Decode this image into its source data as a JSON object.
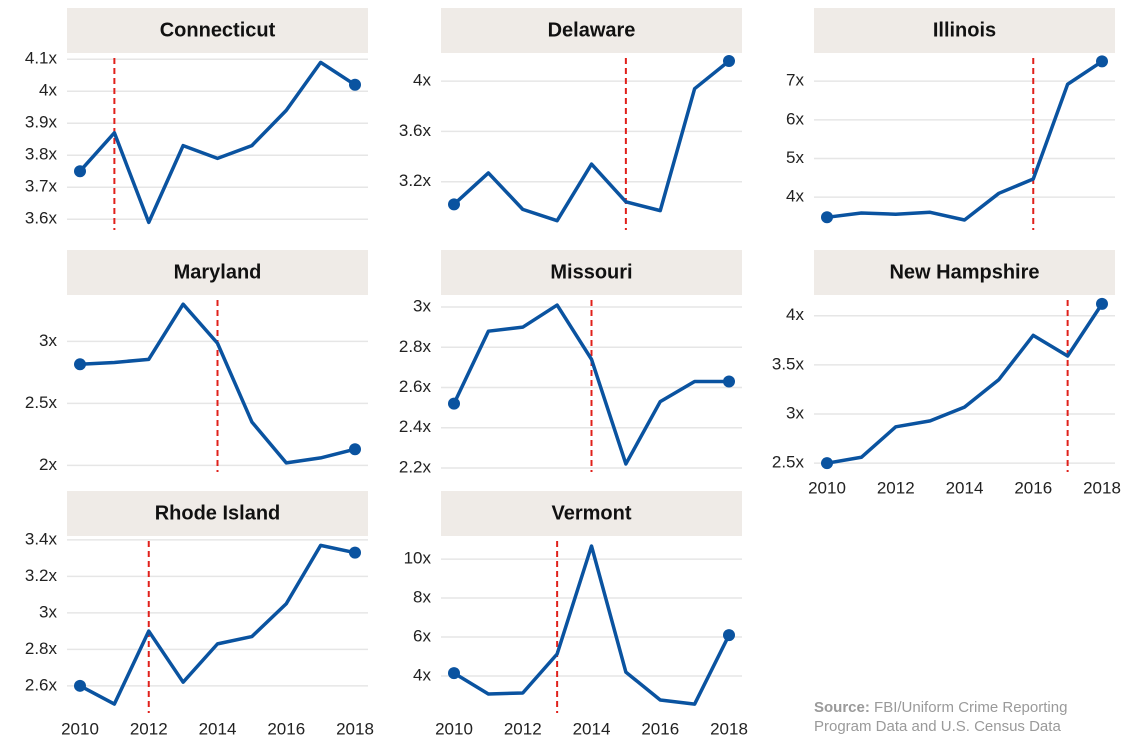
{
  "chart_data": [
    {
      "type": "line",
      "title": "Connecticut",
      "x": [
        2010,
        2011,
        2012,
        2013,
        2014,
        2015,
        2016,
        2017,
        2018
      ],
      "values": [
        3.75,
        3.87,
        3.59,
        3.83,
        3.79,
        3.83,
        3.94,
        4.09,
        4.02
      ],
      "color": "#0a53a0",
      "vline": 2011,
      "vline_color": "#e0201b",
      "ylim": [
        3.56,
        4.11
      ],
      "yticks": [
        {
          "value": 3.6,
          "label": "3.6x"
        },
        {
          "value": 3.7,
          "label": "3.7x"
        },
        {
          "value": 3.8,
          "label": "3.8x"
        },
        {
          "value": 3.9,
          "label": "3.9x"
        },
        {
          "value": 4,
          "label": "4x"
        },
        {
          "value": 4.1,
          "label": "4.1x"
        }
      ],
      "grid": true
    },
    {
      "type": "line",
      "title": "Delaware",
      "x": [
        2010,
        2011,
        2012,
        2013,
        2014,
        2015,
        2016,
        2017,
        2018
      ],
      "values": [
        3.02,
        3.27,
        2.98,
        2.89,
        3.34,
        3.04,
        2.97,
        3.94,
        4.16
      ],
      "color": "#0a53a0",
      "vline": 2015,
      "vline_color": "#e0201b",
      "ylim": [
        2.8,
        4.2
      ],
      "yticks": [
        {
          "value": 3.2,
          "label": "3.2x"
        },
        {
          "value": 3.6,
          "label": "3.6x"
        },
        {
          "value": 4,
          "label": "4x"
        }
      ],
      "grid": true
    },
    {
      "type": "line",
      "title": "Illinois",
      "x": [
        2010,
        2011,
        2012,
        2013,
        2014,
        2015,
        2016,
        2017,
        2018
      ],
      "values": [
        3.48,
        3.59,
        3.56,
        3.61,
        3.41,
        4.1,
        4.47,
        6.92,
        7.51
      ],
      "color": "#0a53a0",
      "vline": 2016,
      "vline_color": "#e0201b",
      "ylim": [
        3.1,
        7.65
      ],
      "yticks": [
        {
          "value": 4,
          "label": "4x"
        },
        {
          "value": 5,
          "label": "5x"
        },
        {
          "value": 6,
          "label": "6x"
        },
        {
          "value": 7,
          "label": "7x"
        }
      ],
      "grid": true
    },
    {
      "type": "line",
      "title": "Maryland",
      "x": [
        2010,
        2011,
        2012,
        2013,
        2014,
        2015,
        2016,
        2017,
        2018
      ],
      "values": [
        2.815,
        2.83,
        2.855,
        3.3,
        2.985,
        2.35,
        2.02,
        2.06,
        2.13
      ],
      "color": "#0a53a0",
      "vline": 2014,
      "vline_color": "#e0201b",
      "ylim": [
        1.93,
        3.35
      ],
      "yticks": [
        {
          "value": 2,
          "label": "2x"
        },
        {
          "value": 2.5,
          "label": "2.5x"
        },
        {
          "value": 3,
          "label": "3x"
        }
      ],
      "grid": true
    },
    {
      "type": "line",
      "title": "Missouri",
      "x": [
        2010,
        2011,
        2012,
        2013,
        2014,
        2015,
        2016,
        2017,
        2018
      ],
      "values": [
        2.52,
        2.88,
        2.9,
        3.01,
        2.74,
        2.22,
        2.53,
        2.63,
        2.63
      ],
      "color": "#0a53a0",
      "vline": 2014,
      "vline_color": "#e0201b",
      "ylim": [
        2.17,
        3.045
      ],
      "yticks": [
        {
          "value": 2.2,
          "label": "2.2x"
        },
        {
          "value": 2.4,
          "label": "2.4x"
        },
        {
          "value": 2.6,
          "label": "2.6x"
        },
        {
          "value": 2.8,
          "label": "2.8x"
        },
        {
          "value": 3,
          "label": "3x"
        }
      ],
      "grid": true
    },
    {
      "type": "line",
      "title": "New Hampshire",
      "x": [
        2010,
        2011,
        2012,
        2013,
        2014,
        2015,
        2016,
        2017,
        2018
      ],
      "values": [
        2.5,
        2.56,
        2.87,
        2.93,
        3.07,
        3.35,
        3.8,
        3.59,
        4.12
      ],
      "color": "#0a53a0",
      "vline": 2017,
      "vline_color": "#e0201b",
      "ylim": [
        2.39,
        4.18
      ],
      "yticks": [
        {
          "value": 2.5,
          "label": "2.5x"
        },
        {
          "value": 3,
          "label": "3x"
        },
        {
          "value": 3.5,
          "label": "3.5x"
        },
        {
          "value": 4,
          "label": "4x"
        }
      ],
      "xticks": [
        2010,
        2012,
        2014,
        2016,
        2018
      ],
      "grid": true
    },
    {
      "type": "line",
      "title": "Rhode Island",
      "x": [
        2010,
        2011,
        2012,
        2013,
        2014,
        2015,
        2016,
        2017,
        2018
      ],
      "values": [
        2.6,
        2.5,
        2.9,
        2.62,
        2.83,
        2.87,
        3.05,
        3.37,
        3.33
      ],
      "color": "#0a53a0",
      "vline": 2012,
      "vline_color": "#e0201b",
      "ylim": [
        2.44,
        3.405
      ],
      "yticks": [
        {
          "value": 2.6,
          "label": "2.6x"
        },
        {
          "value": 2.8,
          "label": "2.8x"
        },
        {
          "value": 3,
          "label": "3x"
        },
        {
          "value": 3.2,
          "label": "3.2x"
        },
        {
          "value": 3.4,
          "label": "3.4x"
        }
      ],
      "xticks": [
        2010,
        2012,
        2014,
        2016,
        2018
      ],
      "grid": true
    },
    {
      "type": "line",
      "title": "Vermont",
      "x": [
        2010,
        2011,
        2012,
        2013,
        2014,
        2015,
        2016,
        2017,
        2018
      ],
      "values": [
        4.15,
        3.08,
        3.13,
        5.13,
        10.67,
        4.2,
        2.77,
        2.56,
        6.1
      ],
      "color": "#0a53a0",
      "vline": 2013,
      "vline_color": "#e0201b",
      "ylim": [
        2.0,
        11.03
      ],
      "yticks": [
        {
          "value": 4,
          "label": "4x"
        },
        {
          "value": 6,
          "label": "6x"
        },
        {
          "value": 8,
          "label": "8x"
        },
        {
          "value": 10,
          "label": "10x"
        }
      ],
      "xticks": [
        2010,
        2012,
        2014,
        2016,
        2018
      ],
      "grid": true
    }
  ],
  "source_label": "Source:",
  "source_text": "FBI/Uniform Crime Reporting Program Data and U.S. Census Data"
}
